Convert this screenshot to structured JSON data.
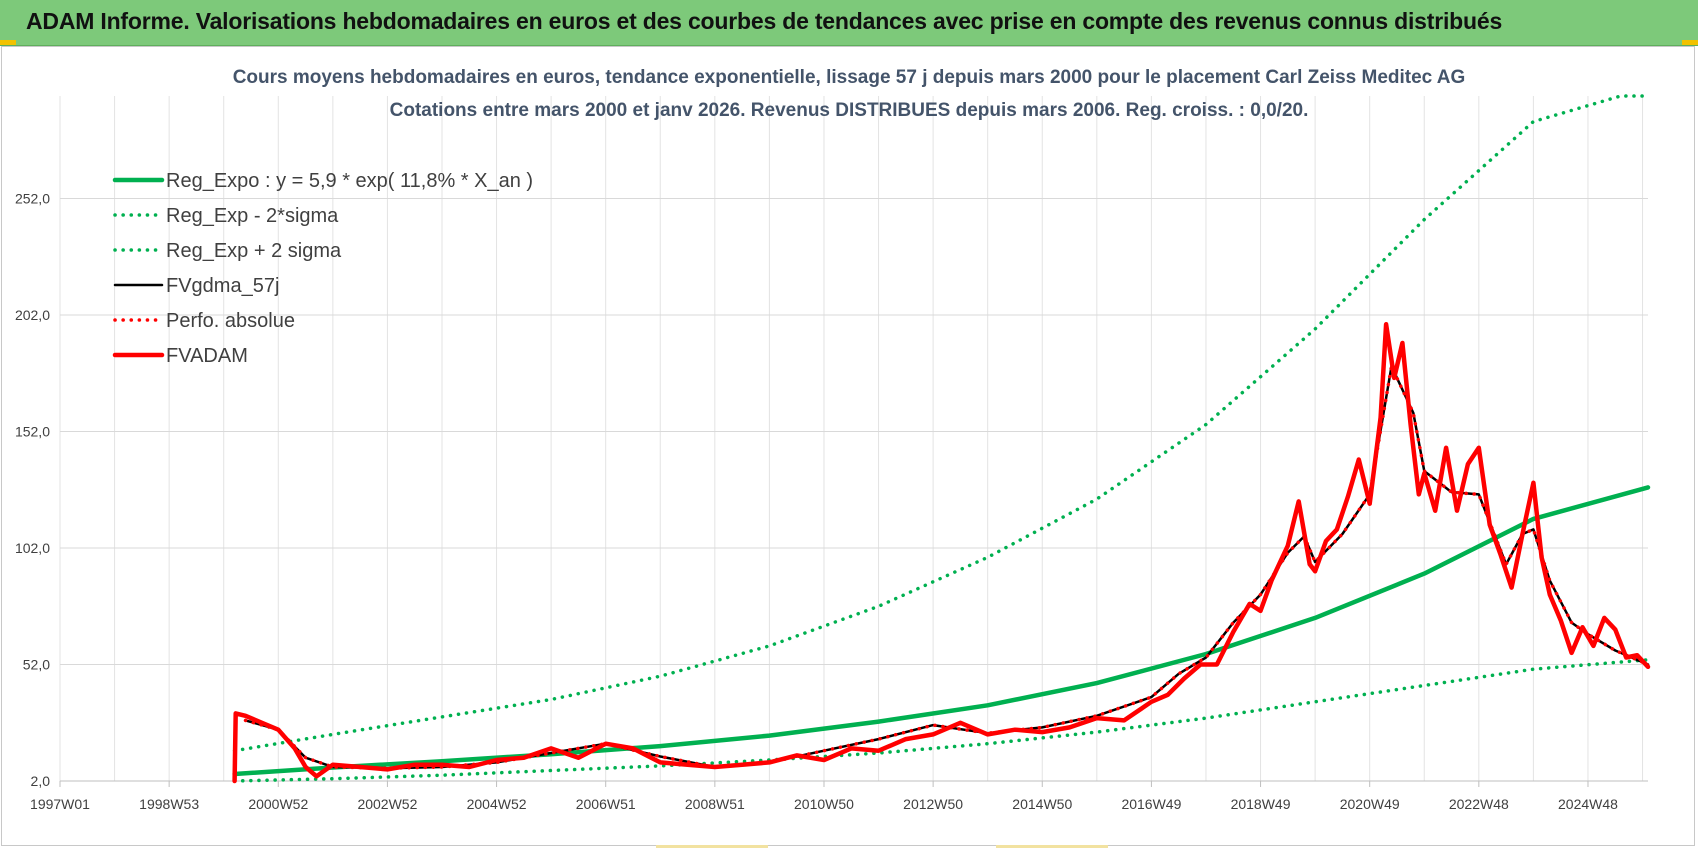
{
  "header": {
    "title": "ADAM Informe. Valorisations hebdomadaires en euros et des courbes de tendances avec prise en compte des revenus connus distribués"
  },
  "colors": {
    "header_bg": "#7dc97a",
    "green": "#00b050",
    "red": "#ff0000",
    "black": "#000000",
    "grid": "#d9d9d9",
    "text": "#44546a"
  },
  "chart_data": {
    "type": "line",
    "title": "Cours moyens hebdomadaires en euros, tendance exponentielle, lissage 57 j depuis mars 2000 pour le placement Carl Zeiss Meditec AG",
    "subtitle": "Cotations entre mars 2000 et janv 2026. Revenus DISTRIBUES depuis mars 2006. Reg. croiss. : 0,0/20.",
    "xlabel": "",
    "ylabel": "",
    "xlim": [
      1997.0,
      2026.1
    ],
    "ylim": [
      2.0,
      296.0
    ],
    "y_ticks": [
      "2,0",
      "52,0",
      "102,0",
      "152,0",
      "202,0",
      "252,0"
    ],
    "y_tick_values": [
      2,
      52,
      102,
      152,
      202,
      252
    ],
    "x_ticks": [
      "1997W01",
      "1998W53",
      "2000W52",
      "2002W52",
      "2004W52",
      "2006W51",
      "2008W51",
      "2010W50",
      "2012W50",
      "2014W50",
      "2016W49",
      "2018W49",
      "2020W49",
      "2022W48",
      "2024W48"
    ],
    "x_tick_values": [
      1997.0,
      1999.0,
      2001.0,
      2003.0,
      2005.0,
      2007.0,
      2009.0,
      2011.0,
      2013.0,
      2015.0,
      2017.0,
      2019.0,
      2021.0,
      2023.0,
      2025.0
    ],
    "grid": true,
    "legend_position": "top-left",
    "series": [
      {
        "name": "Reg_Expo : y = 5,9 * exp( 11,8% *  X_an )",
        "style": "solid-thick",
        "color": "#00b050",
        "x": [
          2000.2,
          2002,
          2004,
          2006,
          2008,
          2010,
          2012,
          2014,
          2016,
          2018,
          2020,
          2022,
          2024,
          2026.1
        ],
        "y": [
          5.0,
          7.8,
          10.5,
          13.5,
          17.0,
          21.5,
          27.5,
          34.5,
          44.0,
          56.5,
          72.0,
          91.0,
          114.5,
          128.0
        ]
      },
      {
        "name": "Reg_Exp - 2*sigma",
        "style": "dotted",
        "color": "#00b050",
        "x": [
          2000.2,
          2002,
          2004,
          2006,
          2008,
          2010,
          2012,
          2014,
          2016,
          2018,
          2020,
          2022,
          2024,
          2026.1
        ],
        "y": [
          2.0,
          3.0,
          4.5,
          6.5,
          8.5,
          11.0,
          14.0,
          18.0,
          23.0,
          29.0,
          36.0,
          43.0,
          50.0,
          54.0
        ]
      },
      {
        "name": "Reg_Exp + 2 sigma",
        "style": "dotted",
        "color": "#00b050",
        "x": [
          2000.2,
          2002,
          2004,
          2006,
          2008,
          2010,
          2012,
          2014,
          2016,
          2018,
          2020,
          2022,
          2024,
          2025.6,
          2026.1
        ],
        "y": [
          15.0,
          22.0,
          29.5,
          37.0,
          47.0,
          60.0,
          77.0,
          98.0,
          123.0,
          155.0,
          196.0,
          243.0,
          285.0,
          296.0,
          296.0
        ]
      },
      {
        "name": "FVgdma_57j",
        "style": "solid",
        "color": "#000000",
        "x": [
          2000.4,
          2001,
          2001.5,
          2002,
          2003,
          2004,
          2005,
          2006,
          2007,
          2008,
          2009,
          2010,
          2011,
          2012,
          2013,
          2014,
          2015,
          2016,
          2017,
          2017.5,
          2018,
          2018.5,
          2019,
          2019.5,
          2019.8,
          2020,
          2020.5,
          2021,
          2021.4,
          2021.8,
          2022,
          2022.5,
          2023,
          2023.5,
          2023.8,
          2024,
          2024.3,
          2024.7,
          2025,
          2025.5,
          2026.1
        ],
        "y": [
          28.0,
          24.0,
          12.0,
          8.0,
          7.5,
          8.0,
          10.0,
          14.0,
          18.0,
          12.5,
          8.0,
          10.0,
          15.0,
          20.0,
          26.0,
          22.5,
          25.0,
          30.0,
          38.0,
          48.0,
          55.0,
          70.0,
          82.0,
          100.0,
          107.0,
          96.0,
          108.0,
          125.0,
          180.0,
          160.0,
          135.0,
          126.0,
          125.0,
          95.0,
          108.0,
          110.0,
          88.0,
          70.0,
          65.0,
          58.0,
          52.0
        ]
      },
      {
        "name": "Perfo. absolue",
        "style": "dotted",
        "color": "#ff0000",
        "x": [
          2000.4,
          2001,
          2001.5,
          2002,
          2003,
          2004,
          2005,
          2006,
          2007,
          2008,
          2009,
          2010,
          2011,
          2012,
          2013,
          2014,
          2015,
          2016,
          2017,
          2017.5,
          2018,
          2018.5,
          2019,
          2019.5,
          2019.8,
          2020,
          2020.5,
          2021,
          2021.4,
          2021.8,
          2022,
          2022.5,
          2023,
          2023.5,
          2023.8,
          2024,
          2024.3,
          2024.7,
          2025,
          2025.5,
          2026.1
        ],
        "y": [
          28.0,
          24.0,
          12.0,
          8.0,
          7.5,
          8.0,
          10.0,
          14.0,
          18.0,
          12.5,
          8.0,
          10.0,
          15.0,
          20.0,
          26.0,
          22.5,
          25.0,
          30.0,
          38.0,
          48.0,
          55.0,
          70.0,
          82.0,
          100.0,
          107.0,
          96.0,
          108.0,
          125.0,
          180.0,
          160.0,
          135.0,
          126.0,
          125.0,
          95.0,
          108.0,
          110.0,
          88.0,
          70.0,
          65.0,
          58.0,
          52.0
        ]
      },
      {
        "name": "FVADAM",
        "style": "solid-thick",
        "color": "#ff0000",
        "x": [
          2000.2,
          2000.22,
          2000.4,
          2000.7,
          2001.0,
          2001.3,
          2001.5,
          2001.7,
          2002.0,
          2002.5,
          2003.0,
          2003.5,
          2004.0,
          2004.5,
          2005.0,
          2005.5,
          2006.0,
          2006.5,
          2007.0,
          2007.5,
          2008.0,
          2008.5,
          2009.0,
          2009.5,
          2010.0,
          2010.5,
          2011.0,
          2011.5,
          2012.0,
          2012.5,
          2013.0,
          2013.5,
          2014.0,
          2014.5,
          2015.0,
          2015.5,
          2016.0,
          2016.5,
          2017.0,
          2017.3,
          2017.6,
          2017.9,
          2018.2,
          2018.5,
          2018.8,
          2019.0,
          2019.2,
          2019.5,
          2019.7,
          2019.9,
          2020.0,
          2020.2,
          2020.4,
          2020.6,
          2020.8,
          2021.0,
          2021.2,
          2021.3,
          2021.45,
          2021.6,
          2021.75,
          2021.9,
          2022.0,
          2022.2,
          2022.4,
          2022.6,
          2022.8,
          2023.0,
          2023.2,
          2023.4,
          2023.6,
          2023.8,
          2024.0,
          2024.15,
          2024.3,
          2024.5,
          2024.7,
          2024.9,
          2025.1,
          2025.3,
          2025.5,
          2025.7,
          2025.9,
          2026.1
        ],
        "y": [
          2.0,
          31.0,
          30.0,
          27.0,
          24.0,
          16.0,
          8.0,
          4.0,
          9.0,
          8.0,
          7.0,
          9.0,
          9.0,
          8.0,
          11.0,
          12.0,
          16.0,
          12.0,
          18.0,
          16.0,
          10.0,
          9.0,
          8.0,
          9.0,
          10.0,
          13.0,
          11.0,
          16.0,
          15.0,
          20.0,
          22.0,
          27.0,
          22.0,
          24.0,
          23.0,
          25.0,
          29.0,
          28.0,
          36.0,
          39.0,
          46.0,
          52.0,
          52.0,
          66.0,
          78.0,
          75.0,
          88.0,
          103.0,
          122.0,
          95.0,
          92.0,
          105.0,
          110.0,
          124.0,
          140.0,
          121.0,
          158.0,
          198.0,
          175.0,
          190.0,
          155.0,
          125.0,
          134.0,
          118.0,
          145.0,
          118.0,
          138.0,
          145.0,
          112.0,
          99.0,
          85.0,
          108.0,
          130.0,
          98.0,
          82.0,
          71.0,
          57.0,
          68.0,
          60.0,
          72.0,
          67.0,
          55.0,
          56.0,
          51.0
        ]
      }
    ]
  }
}
